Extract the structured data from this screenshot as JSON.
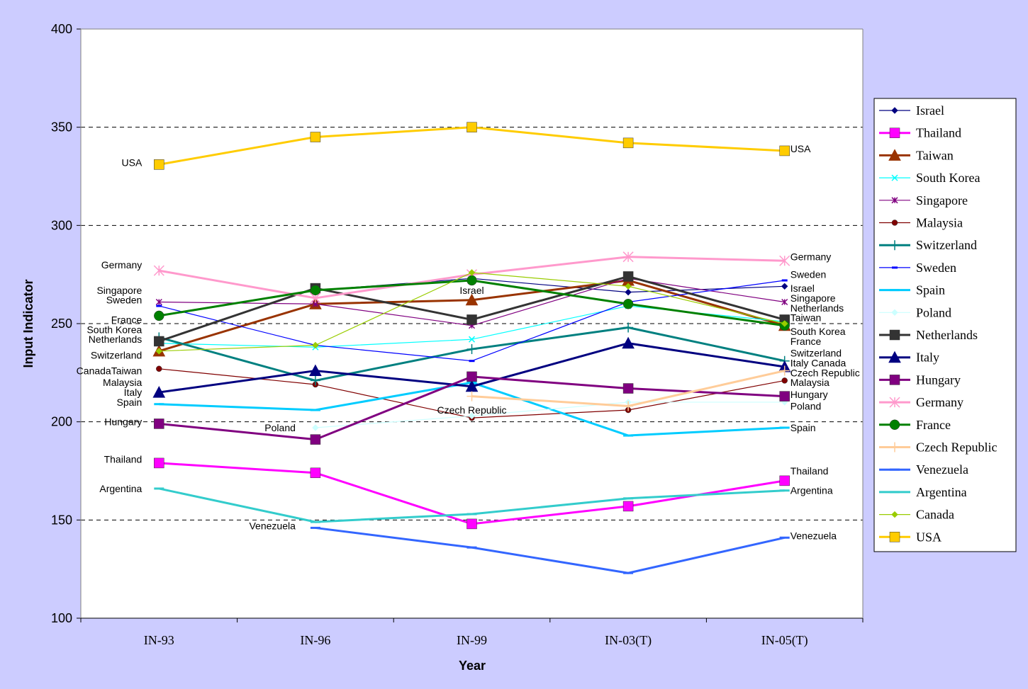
{
  "chart_data": {
    "type": "line",
    "xlabel": "Year",
    "ylabel": "Input Indicator",
    "ylim": [
      100,
      400
    ],
    "yticks": [
      100,
      150,
      200,
      250,
      300,
      350,
      400
    ],
    "categories": [
      "IN-93",
      "IN-96",
      "IN-99",
      "IN-03(T)",
      "IN-05(T)"
    ],
    "grid": "horizontal dashed",
    "legend_position": "right",
    "series": [
      {
        "name": "Israel",
        "color": "#000080",
        "marker": "diamond",
        "width": 1,
        "values": [
          null,
          267,
          273,
          266,
          269
        ]
      },
      {
        "name": "Thailand",
        "color": "#ff00ff",
        "marker": "square",
        "width": 2,
        "values": [
          179,
          174,
          148,
          157,
          170
        ]
      },
      {
        "name": "Taiwan",
        "color": "#993300",
        "marker": "triangle",
        "width": 2,
        "values": [
          236,
          260,
          262,
          272,
          249
        ]
      },
      {
        "name": "South Korea",
        "color": "#00ffff",
        "marker": "x",
        "width": 1,
        "values": [
          240,
          238,
          242,
          259,
          251
        ]
      },
      {
        "name": "Singapore",
        "color": "#800080",
        "marker": "star",
        "width": 1,
        "values": [
          261,
          260,
          249,
          273,
          261
        ]
      },
      {
        "name": "Malaysia",
        "color": "#800000",
        "marker": "circle",
        "width": 1,
        "values": [
          227,
          219,
          202,
          206,
          221
        ]
      },
      {
        "name": "Switzerland",
        "color": "#008080",
        "marker": "plus",
        "width": 2,
        "values": [
          243,
          221,
          237,
          248,
          231
        ]
      },
      {
        "name": "Sweden",
        "color": "#0000ff",
        "marker": "dash",
        "width": 1,
        "values": [
          259,
          239,
          231,
          261,
          272
        ]
      },
      {
        "name": "Spain",
        "color": "#00ccff",
        "marker": "dash",
        "width": 2,
        "values": [
          209,
          206,
          220,
          193,
          197
        ]
      },
      {
        "name": "Poland",
        "color": "#ccffff",
        "marker": "diamond",
        "width": 1,
        "values": [
          null,
          197,
          203,
          210,
          210
        ]
      },
      {
        "name": "Netherlands",
        "color": "#333333",
        "marker": "square",
        "width": 2,
        "values": [
          241,
          268,
          252,
          274,
          252
        ]
      },
      {
        "name": "Italy",
        "color": "#000080",
        "marker": "triangle",
        "width": 2,
        "values": [
          215,
          226,
          218,
          240,
          228
        ]
      },
      {
        "name": "Hungary",
        "color": "#800080",
        "marker": "square",
        "width": 2,
        "values": [
          199,
          191,
          223,
          217,
          213
        ]
      },
      {
        "name": "Germany",
        "color": "#ff99cc",
        "marker": "star",
        "width": 2,
        "values": [
          277,
          263,
          275,
          284,
          282
        ]
      },
      {
        "name": "France",
        "color": "#008000",
        "marker": "circle",
        "width": 2,
        "values": [
          254,
          267,
          272,
          260,
          249
        ]
      },
      {
        "name": "Czech Republic",
        "color": "#ffcc99",
        "marker": "plus",
        "width": 2,
        "values": [
          null,
          null,
          213,
          208,
          226
        ]
      },
      {
        "name": "Venezuela",
        "color": "#3366ff",
        "marker": "dash",
        "width": 2,
        "values": [
          null,
          146,
          136,
          123,
          141
        ]
      },
      {
        "name": "Argentina",
        "color": "#33cccc",
        "marker": "dash",
        "width": 2,
        "values": [
          166,
          149,
          153,
          161,
          165
        ]
      },
      {
        "name": "Canada",
        "color": "#99cc00",
        "marker": "diamond",
        "width": 1,
        "values": [
          236,
          239,
          276,
          269,
          250
        ]
      },
      {
        "name": "USA",
        "color": "#ffcc00",
        "marker": "square",
        "width": 2,
        "values": [
          331,
          345,
          350,
          342,
          338
        ]
      }
    ],
    "annotations": [
      {
        "text": "USA",
        "cat": 0,
        "y": 332
      },
      {
        "text": "USA",
        "cat": 4,
        "y": 339
      },
      {
        "text": "Germany",
        "cat": 0,
        "y": 280
      },
      {
        "text": "Singapore",
        "cat": 0,
        "y": 267
      },
      {
        "text": "Sweden",
        "cat": 0,
        "y": 262
      },
      {
        "text": "France",
        "cat": 0,
        "y": 252
      },
      {
        "text": "South Korea",
        "cat": 0,
        "y": 247
      },
      {
        "text": "Netherlands",
        "cat": 0,
        "y": 242
      },
      {
        "text": "Switzerland",
        "cat": 0,
        "y": 234
      },
      {
        "text": "CanadaTaiwan",
        "cat": 0,
        "y": 226
      },
      {
        "text": "Malaysia",
        "cat": 0,
        "y": 220
      },
      {
        "text": "Italy",
        "cat": 0,
        "y": 215
      },
      {
        "text": "Spain",
        "cat": 0,
        "y": 210
      },
      {
        "text": "Hungary",
        "cat": 0,
        "y": 200
      },
      {
        "text": "Thailand",
        "cat": 0,
        "y": 181
      },
      {
        "text": "Argentina",
        "cat": 0,
        "y": 166
      },
      {
        "text": "Poland",
        "cat": 1,
        "y": 197
      },
      {
        "text": "Venezuela",
        "cat": 1,
        "y": 147
      },
      {
        "text": "Israel",
        "cat": 2,
        "y": 267
      },
      {
        "text": "Czech Republic",
        "cat": 2,
        "y": 206
      },
      {
        "text": "Germany",
        "cat": 4,
        "y": 284
      },
      {
        "text": "Sweden",
        "cat": 4,
        "y": 275
      },
      {
        "text": "Israel",
        "cat": 4,
        "y": 268
      },
      {
        "text": "Singapore",
        "cat": 4,
        "y": 263
      },
      {
        "text": "Netherlands",
        "cat": 4,
        "y": 258
      },
      {
        "text": "Taiwan",
        "cat": 4,
        "y": 253
      },
      {
        "text": "South Korea",
        "cat": 4,
        "y": 246
      },
      {
        "text": "France",
        "cat": 4,
        "y": 241
      },
      {
        "text": "Switzerland",
        "cat": 4,
        "y": 235
      },
      {
        "text": "Italy  Canada",
        "cat": 4,
        "y": 230
      },
      {
        "text": "Czech Republic",
        "cat": 4,
        "y": 225
      },
      {
        "text": "Malaysia",
        "cat": 4,
        "y": 220
      },
      {
        "text": "Hungary",
        "cat": 4,
        "y": 214
      },
      {
        "text": "Poland",
        "cat": 4,
        "y": 208
      },
      {
        "text": "Spain",
        "cat": 4,
        "y": 197
      },
      {
        "text": "Thailand",
        "cat": 4,
        "y": 175
      },
      {
        "text": "Argentina",
        "cat": 4,
        "y": 165
      },
      {
        "text": "Venezuela",
        "cat": 4,
        "y": 142
      }
    ]
  }
}
